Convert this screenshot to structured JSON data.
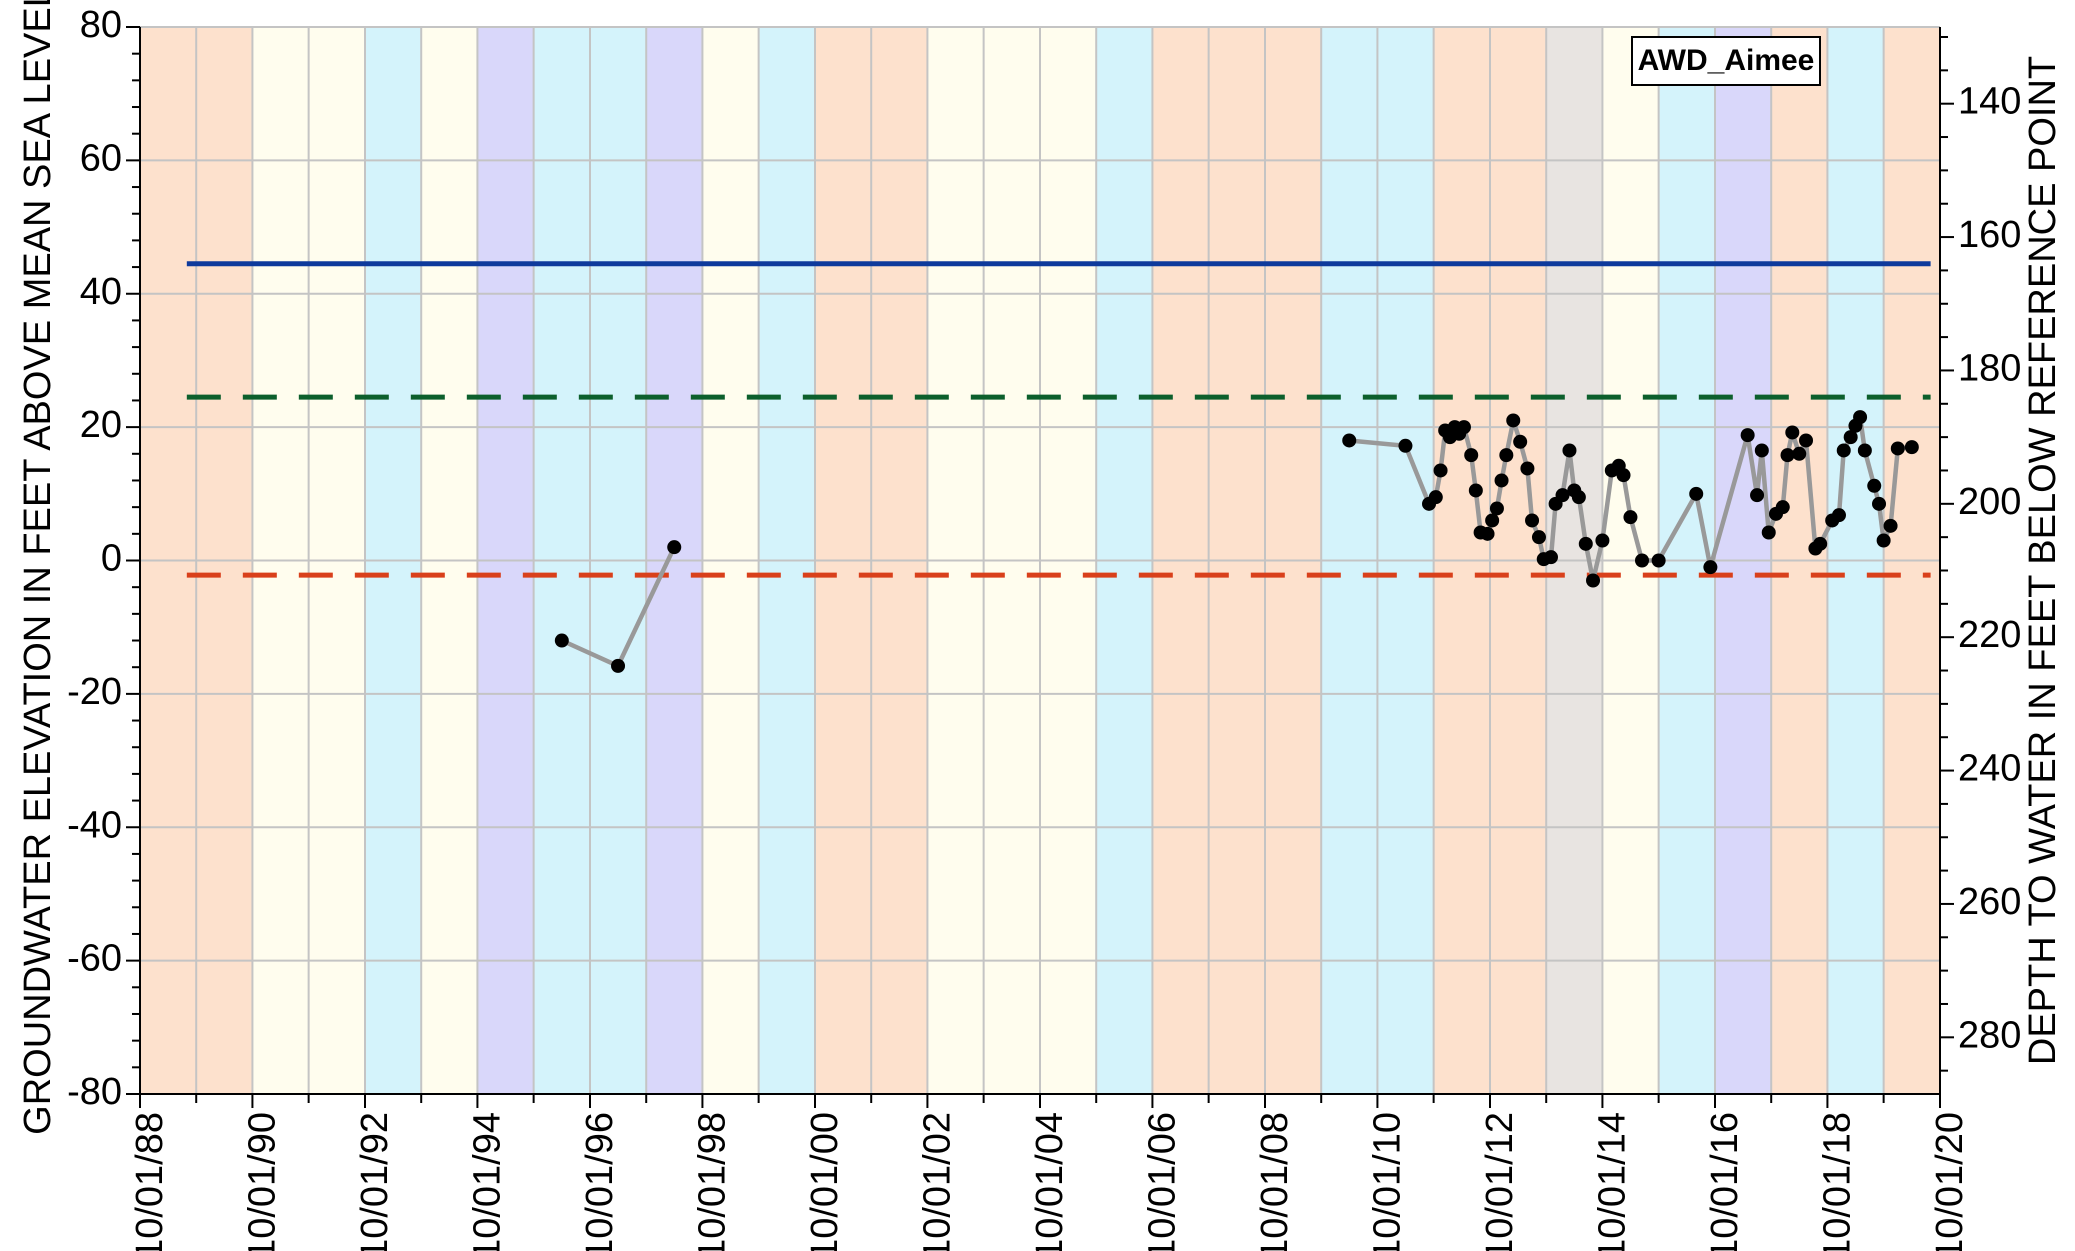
{
  "chart_data": {
    "type": "line",
    "legend": {
      "label": "AWD_Aimee",
      "placement": "top-right"
    },
    "left_axis": {
      "title": "GROUNDWATER ELEVATION IN FEET ABOVE MEAN SEA LEVEL",
      "ylim": [
        -80,
        80
      ],
      "ticks": [
        80,
        60,
        40,
        20,
        0,
        -20,
        -40,
        -60,
        -80
      ],
      "tick_labels": [
        "80",
        "60",
        "40",
        "20",
        "0",
        "-20",
        "-40",
        "-60",
        "-80"
      ]
    },
    "right_axis": {
      "title": "DEPTH TO WATER IN FEET BELOW REFERENCE POINT",
      "ylim": [
        128.5,
        288.5
      ],
      "ticks": [
        140,
        160,
        180,
        200,
        220,
        240,
        260,
        280
      ],
      "tick_labels": [
        "140",
        "160",
        "180",
        "200",
        "220",
        "240",
        "260",
        "280"
      ]
    },
    "x_axis": {
      "xlim": [
        "1988-10-01",
        "2020-10-01"
      ],
      "ticks": [
        "1988-10-01",
        "1990-10-01",
        "1992-10-01",
        "1994-10-01",
        "1996-10-01",
        "1998-10-01",
        "2000-10-01",
        "2002-10-01",
        "2004-10-01",
        "2006-10-01",
        "2008-10-01",
        "2010-10-01",
        "2012-10-01",
        "2014-10-01",
        "2016-10-01",
        "2018-10-01",
        "2020-10-01"
      ],
      "tick_labels": [
        "10/01/88",
        "10/01/90",
        "10/01/92",
        "10/01/94",
        "10/01/96",
        "10/01/98",
        "10/01/00",
        "10/01/02",
        "10/01/04",
        "10/01/06",
        "10/01/08",
        "10/01/10",
        "10/01/12",
        "10/01/14",
        "10/01/16",
        "10/01/18",
        "10/01/20"
      ],
      "minor_ticks_per_year": true
    },
    "grid": true,
    "year_bands": [
      {
        "start": "1988-10-01",
        "end": "1989-10-01",
        "color": "#fde1cd"
      },
      {
        "start": "1989-10-01",
        "end": "1990-10-01",
        "color": "#fde1cd"
      },
      {
        "start": "1990-10-01",
        "end": "1991-10-01",
        "color": "#fffdee"
      },
      {
        "start": "1991-10-01",
        "end": "1992-10-01",
        "color": "#fffdee"
      },
      {
        "start": "1992-10-01",
        "end": "1993-10-01",
        "color": "#d4f3fb"
      },
      {
        "start": "1993-10-01",
        "end": "1994-10-01",
        "color": "#fffdee"
      },
      {
        "start": "1994-10-01",
        "end": "1995-10-01",
        "color": "#d9d7fa"
      },
      {
        "start": "1995-10-01",
        "end": "1996-10-01",
        "color": "#d4f3fb"
      },
      {
        "start": "1996-10-01",
        "end": "1997-10-01",
        "color": "#d4f3fb"
      },
      {
        "start": "1997-10-01",
        "end": "1998-10-01",
        "color": "#d9d7fa"
      },
      {
        "start": "1998-10-01",
        "end": "1999-10-01",
        "color": "#fffdee"
      },
      {
        "start": "1999-10-01",
        "end": "2000-10-01",
        "color": "#d4f3fb"
      },
      {
        "start": "2000-10-01",
        "end": "2001-10-01",
        "color": "#fde1cd"
      },
      {
        "start": "2001-10-01",
        "end": "2002-10-01",
        "color": "#fde1cd"
      },
      {
        "start": "2002-10-01",
        "end": "2003-10-01",
        "color": "#fffdee"
      },
      {
        "start": "2003-10-01",
        "end": "2004-10-01",
        "color": "#fffdee"
      },
      {
        "start": "2004-10-01",
        "end": "2005-10-01",
        "color": "#fffdee"
      },
      {
        "start": "2005-10-01",
        "end": "2006-10-01",
        "color": "#d4f3fb"
      },
      {
        "start": "2006-10-01",
        "end": "2007-10-01",
        "color": "#fde1cd"
      },
      {
        "start": "2007-10-01",
        "end": "2008-10-01",
        "color": "#fde1cd"
      },
      {
        "start": "2008-10-01",
        "end": "2009-10-01",
        "color": "#fde1cd"
      },
      {
        "start": "2009-10-01",
        "end": "2010-10-01",
        "color": "#d4f3fb"
      },
      {
        "start": "2010-10-01",
        "end": "2011-10-01",
        "color": "#d4f3fb"
      },
      {
        "start": "2011-10-01",
        "end": "2012-10-01",
        "color": "#fde1cd"
      },
      {
        "start": "2012-10-01",
        "end": "2013-10-01",
        "color": "#fde1cd"
      },
      {
        "start": "2013-10-01",
        "end": "2014-10-01",
        "color": "#e8e4e1"
      },
      {
        "start": "2014-10-01",
        "end": "2015-10-01",
        "color": "#fffdee"
      },
      {
        "start": "2015-10-01",
        "end": "2016-10-01",
        "color": "#d4f3fb"
      },
      {
        "start": "2016-10-01",
        "end": "2017-10-01",
        "color": "#d9d7fa"
      },
      {
        "start": "2017-10-01",
        "end": "2018-10-01",
        "color": "#fde1cd"
      },
      {
        "start": "2018-10-01",
        "end": "2019-10-01",
        "color": "#d4f3fb"
      },
      {
        "start": "2019-10-01",
        "end": "2020-10-01",
        "color": "#fde1cd"
      }
    ],
    "reference_lines": [
      {
        "y": 44.5,
        "color": "#0e3a9c",
        "style": "solid",
        "x_start": "1989-08-01",
        "x_end": "2020-08-01"
      },
      {
        "y": 24.5,
        "color": "#0c5f2c",
        "style": "dashed",
        "x_start": "1989-08-01",
        "x_end": "2020-08-01"
      },
      {
        "y": -2.2,
        "color": "#d9401b",
        "style": "dashed",
        "x_start": "1989-08-01",
        "x_end": "2020-08-01"
      }
    ],
    "series": [
      {
        "color": "#999999",
        "marker_color": "#000000",
        "segments": [
          [
            {
              "x": "1996-04-01",
              "y": -12
            },
            {
              "x": "1997-04-01",
              "y": -15.8
            },
            {
              "x": "1998-04-01",
              "y": 2
            }
          ],
          [
            {
              "x": "2010-04-01",
              "y": 18
            },
            {
              "x": "2011-04-01",
              "y": 17.2
            },
            {
              "x": "2011-09-01",
              "y": 8.5
            },
            {
              "x": "2011-10-15",
              "y": 9.5
            },
            {
              "x": "2011-11-15",
              "y": 13.5
            },
            {
              "x": "2011-12-15",
              "y": 19.5
            },
            {
              "x": "2012-01-15",
              "y": 18.5
            },
            {
              "x": "2012-02-15",
              "y": 20
            },
            {
              "x": "2012-03-15",
              "y": 19
            },
            {
              "x": "2012-04-15",
              "y": 20
            },
            {
              "x": "2012-06-01",
              "y": 15.8
            },
            {
              "x": "2012-07-01",
              "y": 10.5
            },
            {
              "x": "2012-08-01",
              "y": 4.2
            },
            {
              "x": "2012-09-15",
              "y": 4
            },
            {
              "x": "2012-10-15",
              "y": 6
            },
            {
              "x": "2012-11-15",
              "y": 7.8
            },
            {
              "x": "2012-12-15",
              "y": 12
            },
            {
              "x": "2013-01-15",
              "y": 15.8
            },
            {
              "x": "2013-03-01",
              "y": 21
            },
            {
              "x": "2013-04-15",
              "y": 17.8
            },
            {
              "x": "2013-06-01",
              "y": 13.8
            },
            {
              "x": "2013-07-01",
              "y": 6
            },
            {
              "x": "2013-08-15",
              "y": 3.5
            },
            {
              "x": "2013-09-15",
              "y": 0.2
            },
            {
              "x": "2013-11-01",
              "y": 0.5
            },
            {
              "x": "2013-12-01",
              "y": 8.5
            },
            {
              "x": "2014-01-15",
              "y": 9.8
            },
            {
              "x": "2014-03-01",
              "y": 16.5
            },
            {
              "x": "2014-04-01",
              "y": 10.5
            },
            {
              "x": "2014-05-01",
              "y": 9.5
            },
            {
              "x": "2014-06-15",
              "y": 2.5
            },
            {
              "x": "2014-08-01",
              "y": -3
            },
            {
              "x": "2014-10-01",
              "y": 3
            },
            {
              "x": "2014-12-01",
              "y": 13.5
            },
            {
              "x": "2015-01-15",
              "y": 14.2
            },
            {
              "x": "2015-02-15",
              "y": 12.8
            },
            {
              "x": "2015-04-01",
              "y": 6.5
            },
            {
              "x": "2015-06-15",
              "y": 0
            },
            {
              "x": "2015-10-01",
              "y": 0
            },
            {
              "x": "2016-06-01",
              "y": 10
            },
            {
              "x": "2016-09-01",
              "y": -1
            },
            {
              "x": "2017-05-01",
              "y": 18.8
            },
            {
              "x": "2017-07-01",
              "y": 9.8
            },
            {
              "x": "2017-08-01",
              "y": 16.5
            },
            {
              "x": "2017-09-15",
              "y": 4.2
            },
            {
              "x": "2017-11-01",
              "y": 7
            },
            {
              "x": "2017-12-15",
              "y": 8
            },
            {
              "x": "2018-01-15",
              "y": 15.8
            },
            {
              "x": "2018-02-15",
              "y": 19.2
            },
            {
              "x": "2018-04-01",
              "y": 16
            },
            {
              "x": "2018-05-15",
              "y": 18
            },
            {
              "x": "2018-07-15",
              "y": 1.8
            },
            {
              "x": "2018-08-15",
              "y": 2.5
            },
            {
              "x": "2018-11-01",
              "y": 6
            },
            {
              "x": "2018-12-15",
              "y": 6.8
            },
            {
              "x": "2019-01-15",
              "y": 16.5
            },
            {
              "x": "2019-03-01",
              "y": 18.5
            },
            {
              "x": "2019-04-01",
              "y": 20.2
            },
            {
              "x": "2019-05-01",
              "y": 21.5
            },
            {
              "x": "2019-06-01",
              "y": 16.5
            },
            {
              "x": "2019-08-01",
              "y": 11.2
            },
            {
              "x": "2019-09-01",
              "y": 8.5
            },
            {
              "x": "2019-10-01",
              "y": 3
            },
            {
              "x": "2019-11-15",
              "y": 5.2
            },
            {
              "x": "2020-01-01",
              "y": 16.8
            },
            {
              "x": "2020-04-01",
              "y": 17
            }
          ]
        ]
      }
    ]
  }
}
